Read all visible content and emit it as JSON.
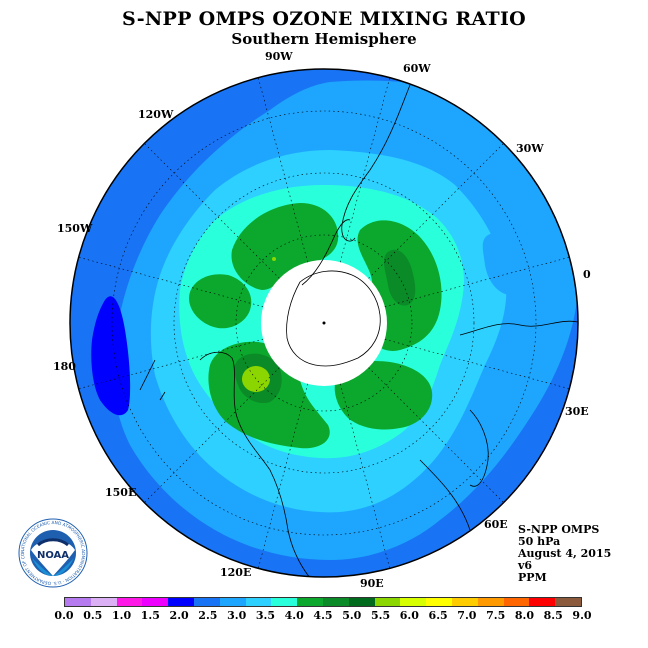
{
  "header": {
    "title": "S-NPP OMPS OZONE MIXING RATIO",
    "subtitle": "Southern Hemisphere"
  },
  "longitude_labels": [
    "90W",
    "60W",
    "30W",
    "0",
    "30E",
    "60E",
    "90E",
    "120E",
    "150E",
    "180",
    "150W",
    "120W"
  ],
  "info": {
    "instrument": "S-NPP OMPS",
    "level": "50 hPa",
    "date": "August 4, 2015",
    "version": "v6",
    "units": "PPM"
  },
  "logo": {
    "text": "NOAA",
    "ring_text": "NATIONAL OCEANIC AND ATMOSPHERIC ADMINISTRATION · U.S. DEPARTMENT OF COMMERCE"
  },
  "colorbar": {
    "ticks": [
      "0.0",
      "0.5",
      "1.0",
      "1.5",
      "2.0",
      "2.5",
      "3.0",
      "3.5",
      "4.0",
      "4.5",
      "5.0",
      "5.5",
      "6.0",
      "6.5",
      "7.0",
      "7.5",
      "8.0",
      "8.5",
      "9.0"
    ],
    "colors": [
      "#b77bf0",
      "#dcb0f5",
      "#ff19e6",
      "#ee00ff",
      "#0000ff",
      "#1874f4",
      "#1ea6ff",
      "#2dd0ff",
      "#2affdc",
      "#0ba82d",
      "#0b8a28",
      "#006b1d",
      "#8bd600",
      "#d7ff00",
      "#ffff00",
      "#ffcc00",
      "#ff9900",
      "#ff6600",
      "#ff0000",
      "#8b5a3c"
    ]
  },
  "map": {
    "projection": "south polar stereographic",
    "field_levels_ppm": {
      "background": "2.5-3.0",
      "outer_ring": "3.0-3.5",
      "middle_ring": "3.5-4.0",
      "inner_ring": "4.0-4.5",
      "high_cells": "4.5-5.0",
      "peak_cell": "5.5-6.0",
      "low_pacific": "2.0-2.5",
      "pole_no_data": "no data"
    }
  }
}
